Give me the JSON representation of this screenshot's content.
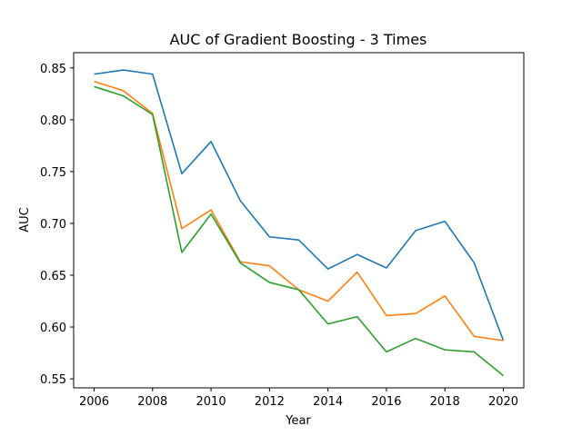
{
  "chart_data": {
    "type": "line",
    "title": "AUC of Gradient Boosting - 3 Times",
    "xlabel": "Year",
    "ylabel": "AUC",
    "x": [
      2006,
      2007,
      2008,
      2009,
      2010,
      2011,
      2012,
      2013,
      2014,
      2015,
      2016,
      2017,
      2018,
      2019,
      2020
    ],
    "xticks": [
      "2006",
      "2008",
      "2010",
      "2012",
      "2014",
      "2016",
      "2018",
      "2020"
    ],
    "yticks": [
      "0.55",
      "0.60",
      "0.65",
      "0.70",
      "0.75",
      "0.80",
      "0.85"
    ],
    "xlim": [
      2005.3,
      2020.7
    ],
    "ylim": [
      0.5413,
      0.8647
    ],
    "grid": false,
    "series": [
      {
        "color": "#1f77b4",
        "values": [
          0.844,
          0.848,
          0.844,
          0.748,
          0.779,
          0.722,
          0.687,
          0.684,
          0.656,
          0.67,
          0.657,
          0.693,
          0.702,
          0.662,
          0.587
        ]
      },
      {
        "color": "#ff7f0e",
        "values": [
          0.837,
          0.828,
          0.806,
          0.695,
          0.713,
          0.663,
          0.659,
          0.636,
          0.625,
          0.653,
          0.611,
          0.613,
          0.63,
          0.591,
          0.587
        ]
      },
      {
        "color": "#2ca02c",
        "values": [
          0.832,
          0.823,
          0.805,
          0.672,
          0.709,
          0.662,
          0.643,
          0.636,
          0.603,
          0.61,
          0.576,
          0.589,
          0.578,
          0.576,
          0.553
        ]
      }
    ]
  }
}
